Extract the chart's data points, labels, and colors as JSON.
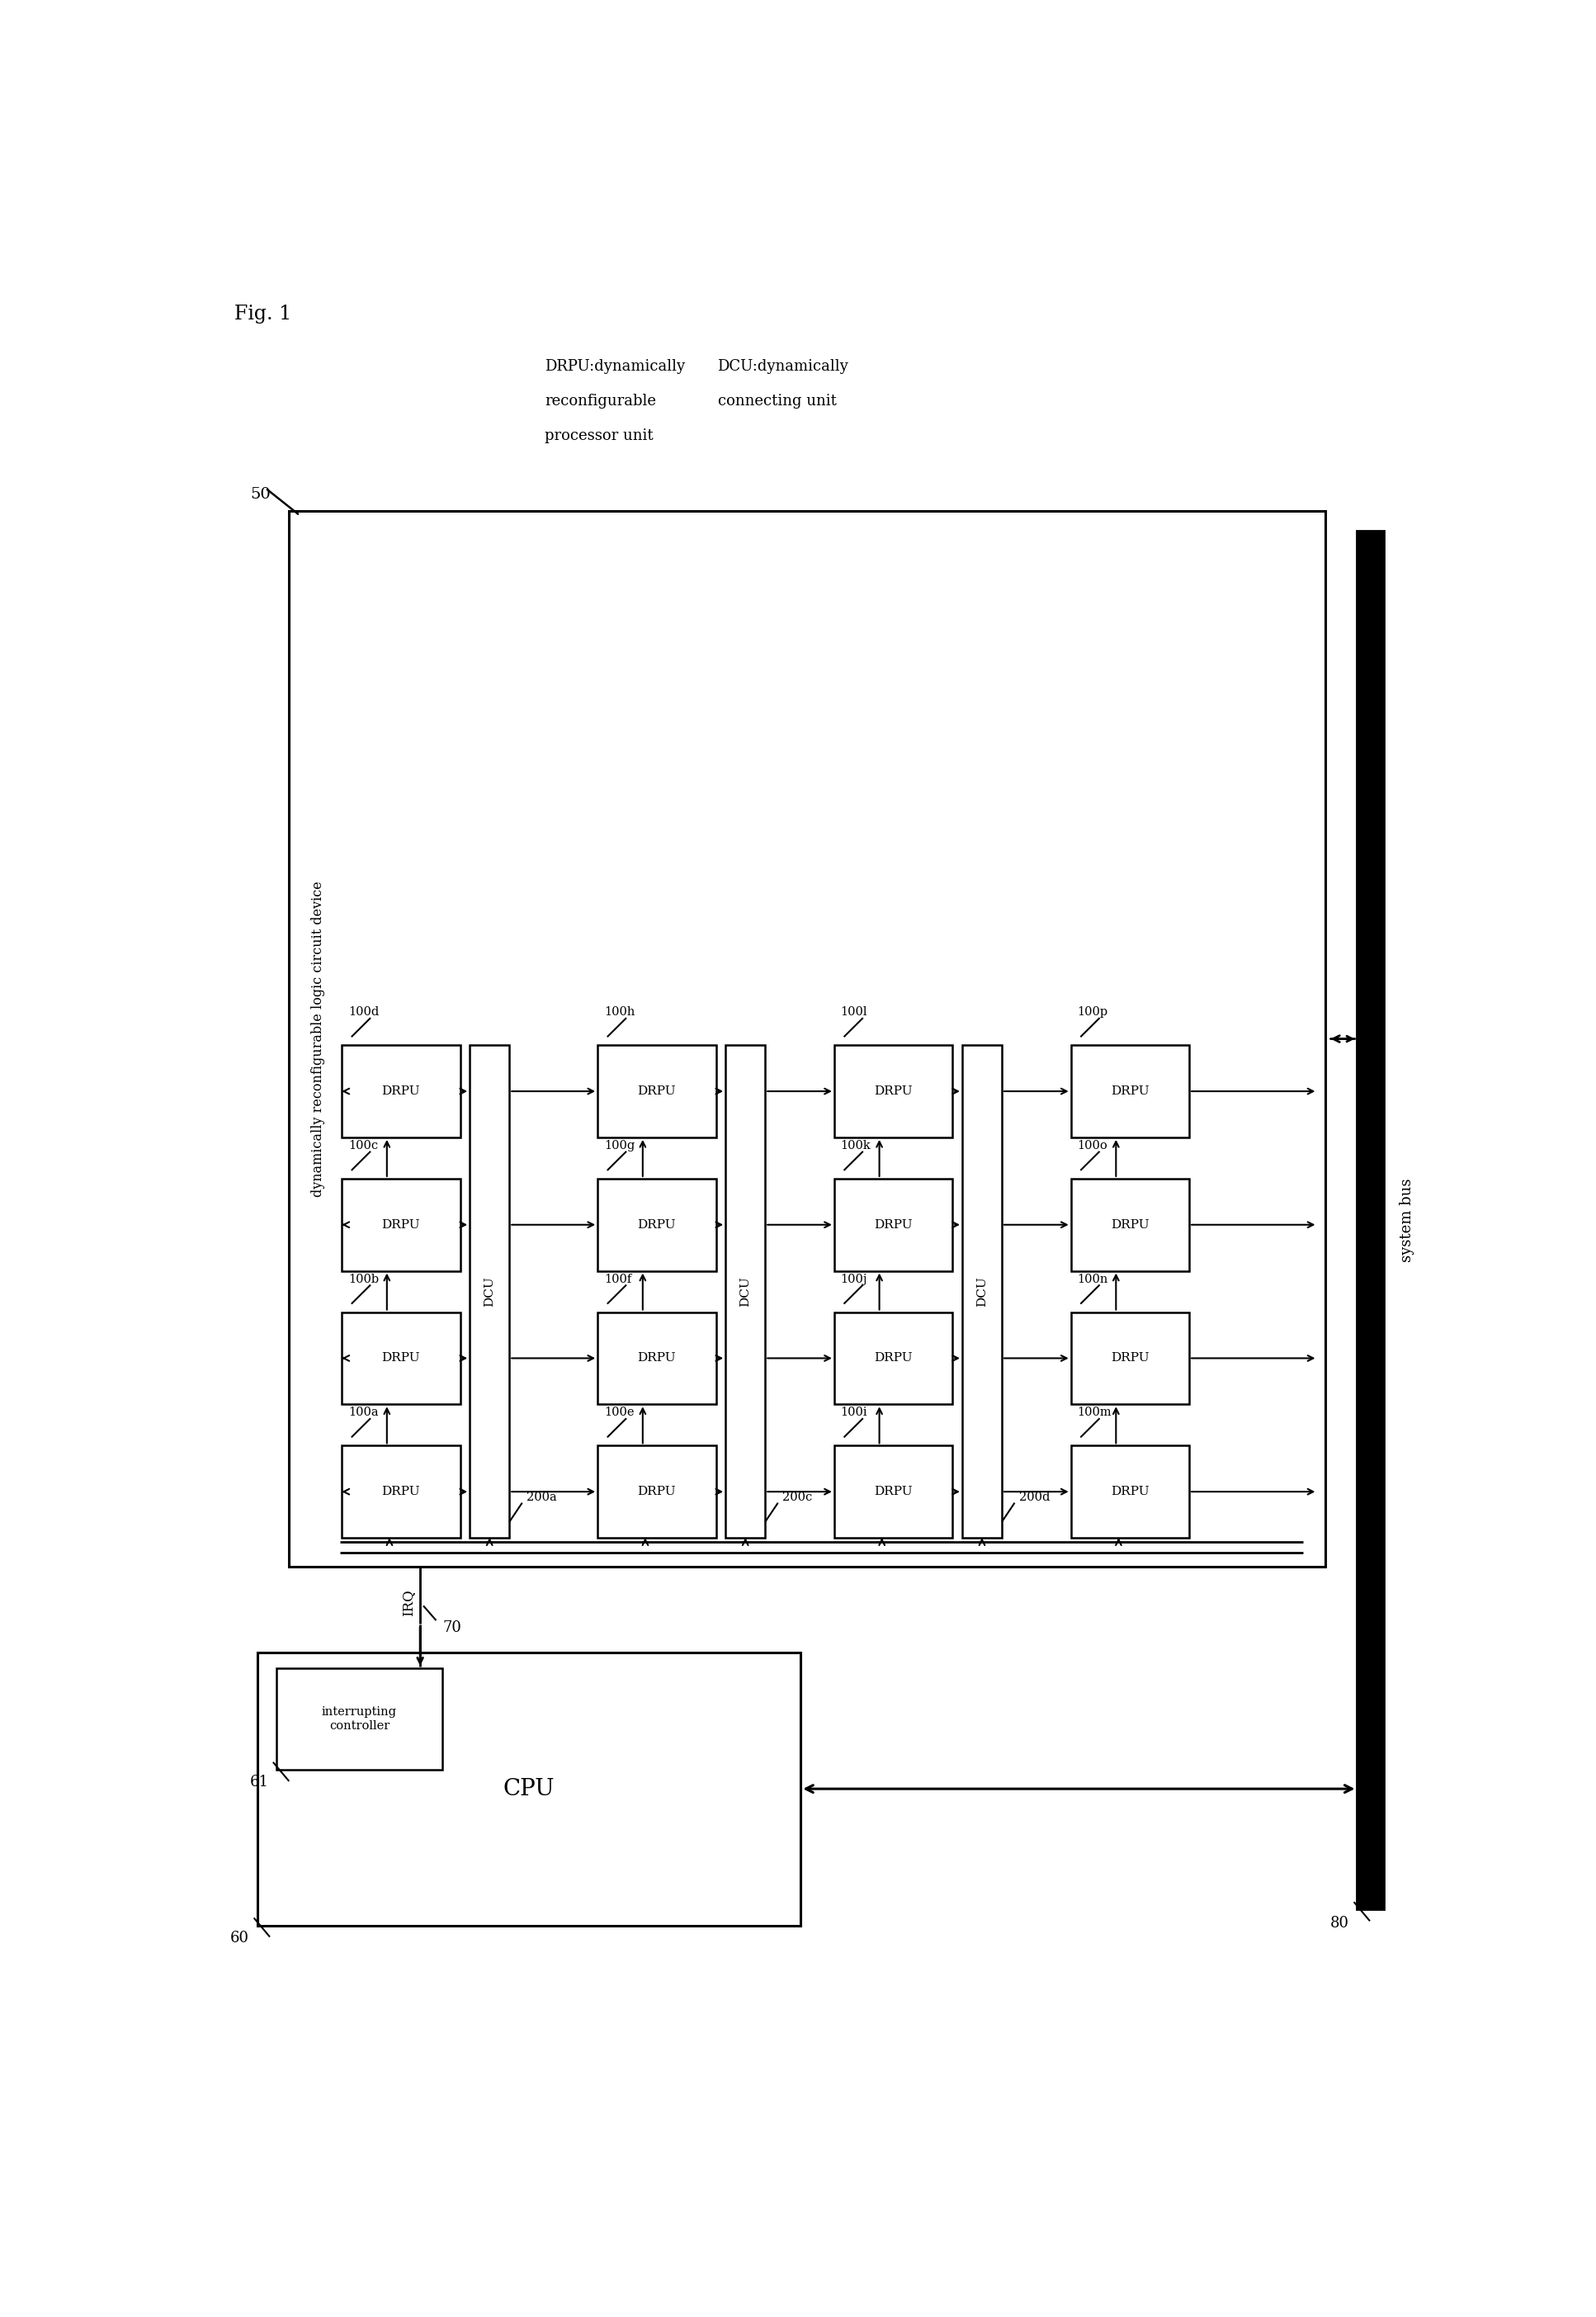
{
  "fig_label": "Fig. 1",
  "bg_color": "#ffffff",
  "legend_drpu_line1": "DRPU:dynamically",
  "legend_drpu_line2": "reconfigurable",
  "legend_drpu_line3": "processor unit",
  "legend_dcu_line1": "DCU:dynamically",
  "legend_dcu_line2": "connecting unit",
  "main_box_label": "dynamically reconfigurable logic circuit device",
  "main_box_num": "50",
  "cpu_label": "CPU",
  "cpu_num": "60",
  "int_ctrl_label": "interrupting\ncontroller",
  "int_ctrl_num": "61",
  "irq_label": "IRQ",
  "bus_num": "70",
  "system_bus_label": "system bus",
  "system_bus_num": "80",
  "drpu_tags_by_col": [
    [
      "100a",
      "100b",
      "100c",
      "100d"
    ],
    [
      "100e",
      "100f",
      "100g",
      "100h"
    ],
    [
      "100i",
      "100j",
      "100k",
      "100l"
    ],
    [
      "100m",
      "100n",
      "100o",
      "100p"
    ]
  ],
  "dcu_tags": [
    "200a",
    "200c",
    "200d"
  ]
}
